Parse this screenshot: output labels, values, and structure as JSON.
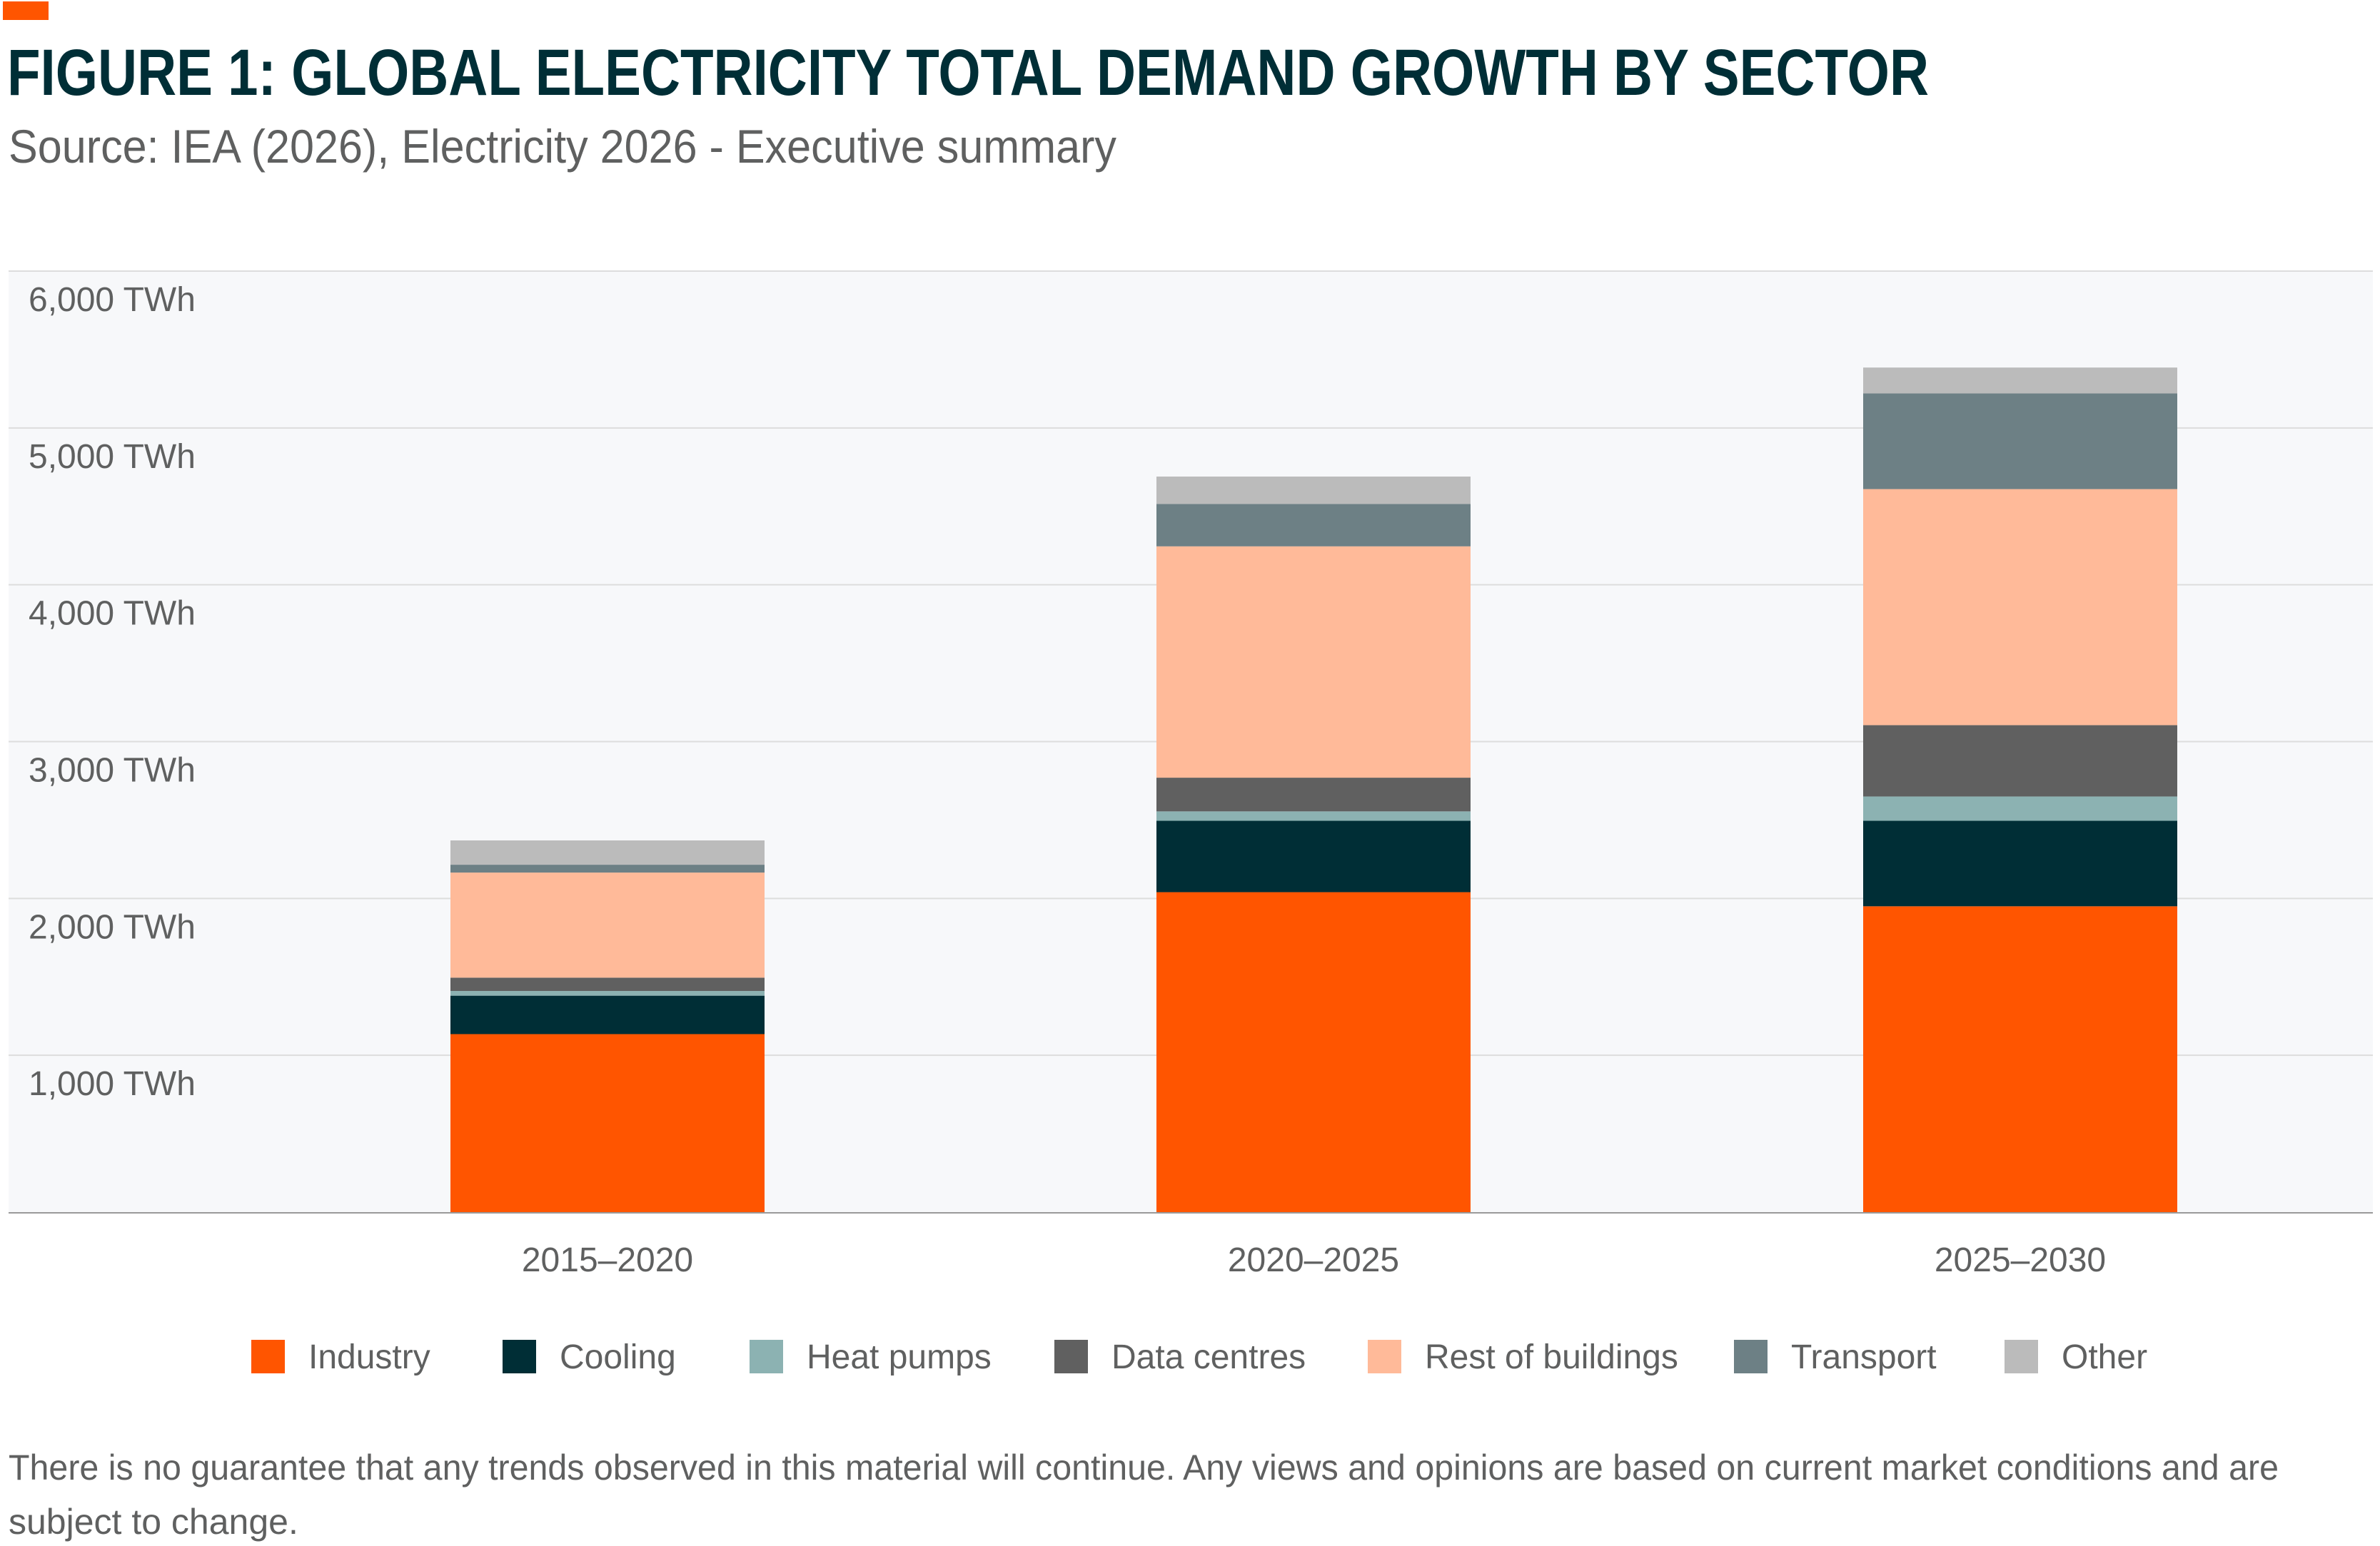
{
  "header": {
    "title": "FIGURE 1: GLOBAL ELECTRICITY TOTAL DEMAND GROWTH BY SECTOR",
    "subtitle": "Source: IEA (2026), Electricity 2026 - Executive summary",
    "accent_color": "#ff5500"
  },
  "chart_data": {
    "type": "bar",
    "stacked": true,
    "title": "FIGURE 1: GLOBAL ELECTRICITY TOTAL DEMAND GROWTH BY SECTOR",
    "xlabel": "",
    "ylabel": "",
    "categories": [
      "2015–2020",
      "2020–2025",
      "2025–2030"
    ],
    "ylim": [
      0,
      6000
    ],
    "yticks": [
      1000,
      2000,
      3000,
      4000,
      5000,
      6000
    ],
    "ytick_labels": [
      "1,000 TWh",
      "2,000 TWh",
      "3,000 TWh",
      "4,000 TWh",
      "5,000 TWh",
      "6,000 TWh"
    ],
    "grid": true,
    "legend_position": "bottom",
    "series": [
      {
        "name": "Industry",
        "color": "#ff5500",
        "values": [
          1135,
          2040,
          1950
        ]
      },
      {
        "name": "Cooling",
        "color": "#002e36",
        "values": [
          245,
          455,
          545
        ]
      },
      {
        "name": "Heat pumps",
        "color": "#8cb2b2",
        "values": [
          30,
          60,
          155
        ]
      },
      {
        "name": "Data centres",
        "color": "#606060",
        "values": [
          85,
          215,
          455
        ]
      },
      {
        "name": "Rest of buildings",
        "color": "#ffba99",
        "values": [
          670,
          1475,
          1505
        ]
      },
      {
        "name": "Transport",
        "color": "#6d8085",
        "values": [
          50,
          270,
          610
        ]
      },
      {
        "name": "Other",
        "color": "#bbbbbb",
        "values": [
          155,
          175,
          165
        ]
      }
    ]
  },
  "footnote": {
    "line1": "There is no guarantee that any trends observed in this material will continue. Any views and opinions are based on current market conditions and are",
    "line2": "subject to change."
  }
}
